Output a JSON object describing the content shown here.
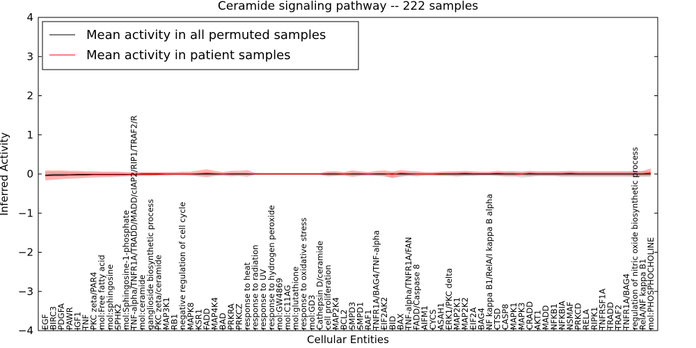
{
  "chart_data": {
    "type": "line",
    "title": "Ceramide signaling pathway -- 222 samples",
    "xlabel": "Cellular Entities",
    "ylabel": "Inferred Activity",
    "ylim": [
      -4,
      4
    ],
    "yticks": [
      -4,
      -3,
      -2,
      -1,
      0,
      1,
      2,
      3,
      4
    ],
    "ytick_labels": [
      "−4",
      "−3",
      "−2",
      "−1",
      "0",
      "1",
      "2",
      "3",
      "4"
    ],
    "legend_position": "top-left",
    "categories": [
      "EGF",
      "BIRC3",
      "PDGFA",
      "PAWR",
      "IGF1",
      "TNF",
      "PKC zeta/PAR4",
      "mol:Free fatty acid",
      "mol:sphingosine",
      "SPHK2",
      "mol:Sphingosine-1-phosphate",
      "TNF-alpha/TNFR1A/TRADD/MADD/cIAP2/RIP1/TRAF2/R",
      "mol:ceramide",
      "ganglioside biosynthetic process",
      "PKC zeta/ceramide",
      "MAP3K1",
      "RB1",
      "negative regulation of cell cycle",
      "MAPK8",
      "KSR1",
      "FADD",
      "MAP4K4",
      "BAD",
      "PRKRA",
      "PRKCZ",
      "response to heat",
      "response to radiation",
      "response to UV",
      "response to hydrogen peroxide",
      "mol:GW4869",
      "mol:C11AG",
      "mol:glutathione",
      "response to oxidative stress",
      "mol:GD3",
      "Cathepsin D/ceramide",
      "cell proliferation",
      "MAP2K4",
      "BCL2",
      "SMPD3",
      "SMPD1",
      "RAF1",
      "TNFR1A/BAG4/TNF-alpha",
      "EIF2AK2",
      "BID",
      "BAX",
      "TNF-alpha/TNFR1A/FAN",
      "FADD/Caspase 8",
      "AIFM1",
      "CYCS",
      "ASAH1",
      "ERK1/PKC delta",
      "MAP2K1",
      "MAP2K2",
      "EIF2A",
      "BAG4",
      "NF kappa B1/RelA/I kappa B alpha",
      "CTSD",
      "CASP8",
      "MAPK1",
      "MAPK3",
      "CRADD",
      "AKT1",
      "MADD",
      "NFKB1",
      "NFKBIA",
      "NSMAF",
      "PRKCD",
      "RELA",
      "RIPK1",
      "TNFRSF1A",
      "TRADD",
      "TRAF2",
      "TNFR1A/BAG4",
      "regulation of nitric oxide biosynthetic process",
      "RelA/NF kappa B1",
      "mol:PHOSPHOCHOLINE"
    ],
    "series": [
      {
        "name": "Mean activity in all permuted samples",
        "color": "#000000",
        "values": [
          -0.03,
          -0.02,
          -0.02,
          -0.02,
          -0.01,
          -0.01,
          -0.01,
          -0.01,
          -0.01,
          -0.01,
          -0.01,
          -0.01,
          0,
          0,
          0,
          0,
          0,
          0,
          0,
          0,
          0,
          0,
          0,
          0,
          0,
          0,
          0,
          0,
          0,
          0,
          0,
          0,
          0,
          0,
          0,
          0,
          0,
          0,
          0,
          0,
          0,
          0,
          0,
          0,
          0,
          0,
          0,
          0,
          0,
          0,
          0,
          0,
          0,
          0,
          0,
          0,
          0,
          0,
          0,
          0,
          0,
          0,
          0,
          0,
          0,
          0,
          0,
          0,
          0,
          0,
          0,
          0,
          0,
          0,
          0,
          0
        ],
        "band_lower": [
          -0.05,
          -0.05,
          -0.05,
          -0.05,
          -0.05,
          -0.04,
          -0.04,
          -0.04,
          -0.04,
          -0.04,
          -0.03,
          -0.03,
          -0.03,
          -0.03,
          -0.03,
          -0.03,
          -0.03,
          -0.03,
          -0.03,
          -0.04,
          -0.05,
          -0.04,
          -0.03,
          -0.03,
          -0.03,
          -0.03,
          -0.03,
          -0.02,
          -0.02,
          -0.02,
          -0.02,
          -0.02,
          -0.02,
          -0.02,
          -0.02,
          -0.04,
          -0.04,
          -0.03,
          -0.05,
          -0.04,
          -0.03,
          -0.03,
          -0.04,
          -0.12,
          -0.07,
          -0.04,
          -0.06,
          -0.03,
          -0.03,
          -0.04,
          -0.04,
          -0.05,
          -0.04,
          -0.04,
          -0.03,
          -0.03,
          -0.03,
          -0.05,
          -0.05,
          -0.1,
          -0.07,
          -0.05,
          -0.05,
          -0.05,
          -0.06,
          -0.06,
          -0.06,
          -0.06,
          -0.06,
          -0.06,
          -0.06,
          -0.06,
          -0.06,
          -0.07,
          -0.07,
          -0.08
        ],
        "band_upper": [
          0.05,
          0.05,
          0.05,
          0.05,
          0.05,
          0.04,
          0.04,
          0.04,
          0.04,
          0.04,
          0.03,
          0.03,
          0.03,
          0.03,
          0.03,
          0.03,
          0.03,
          0.03,
          0.03,
          0.04,
          0.05,
          0.04,
          0.03,
          0.03,
          0.03,
          0.03,
          0.03,
          0.02,
          0.02,
          0.02,
          0.02,
          0.02,
          0.02,
          0.02,
          0.02,
          0.04,
          0.04,
          0.03,
          0.05,
          0.04,
          0.03,
          0.03,
          0.04,
          0.05,
          0.05,
          0.04,
          0.04,
          0.03,
          0.03,
          0.04,
          0.04,
          0.05,
          0.04,
          0.04,
          0.03,
          0.03,
          0.03,
          0.05,
          0.05,
          0.05,
          0.05,
          0.05,
          0.05,
          0.05,
          0.06,
          0.06,
          0.06,
          0.06,
          0.06,
          0.06,
          0.06,
          0.06,
          0.06,
          0.07,
          0.07,
          0.08
        ]
      },
      {
        "name": "Mean activity in patient samples",
        "color": "#ff0000",
        "values": [
          -0.05,
          -0.04,
          -0.04,
          -0.03,
          -0.03,
          -0.03,
          -0.02,
          -0.02,
          -0.02,
          -0.02,
          -0.02,
          -0.01,
          -0.01,
          -0.01,
          -0.01,
          0,
          0,
          0,
          0,
          0.01,
          0.02,
          0.01,
          0,
          0.01,
          0.01,
          0.01,
          0,
          0,
          0,
          0,
          0,
          0,
          0,
          0,
          0,
          0.01,
          0.01,
          0,
          0.01,
          0.01,
          0,
          0.01,
          0.01,
          -0.01,
          0.02,
          0.01,
          0,
          0,
          0,
          0.01,
          0.01,
          0.01,
          0.02,
          0.01,
          0.01,
          0.01,
          0.02,
          0.01,
          0.01,
          0,
          0.02,
          0.01,
          0.01,
          0.01,
          0.01,
          0.02,
          0.01,
          0.01,
          0.01,
          0.01,
          0.01,
          0.01,
          0.01,
          0.01,
          0.01,
          0.03
        ],
        "band_lower": [
          -0.16,
          -0.15,
          -0.13,
          -0.12,
          -0.11,
          -0.1,
          -0.09,
          -0.08,
          -0.08,
          -0.07,
          -0.06,
          -0.06,
          -0.05,
          -0.05,
          -0.04,
          -0.04,
          -0.03,
          -0.03,
          -0.04,
          -0.06,
          -0.08,
          -0.05,
          -0.04,
          -0.06,
          -0.05,
          -0.07,
          -0.02,
          -0.02,
          -0.02,
          -0.02,
          -0.02,
          -0.02,
          -0.02,
          -0.02,
          -0.02,
          -0.06,
          -0.05,
          -0.04,
          -0.07,
          -0.05,
          -0.04,
          -0.05,
          -0.06,
          -0.09,
          -0.06,
          -0.05,
          -0.05,
          -0.04,
          -0.04,
          -0.05,
          -0.05,
          -0.06,
          -0.05,
          -0.05,
          -0.04,
          -0.04,
          -0.05,
          -0.06,
          -0.06,
          -0.04,
          -0.06,
          -0.05,
          -0.05,
          -0.05,
          -0.06,
          -0.06,
          -0.06,
          -0.06,
          -0.06,
          -0.06,
          -0.06,
          -0.06,
          -0.06,
          -0.06,
          -0.06,
          -0.05
        ],
        "band_upper": [
          0.09,
          0.09,
          0.09,
          0.08,
          0.08,
          0.07,
          0.07,
          0.06,
          0.06,
          0.06,
          0.05,
          0.05,
          0.05,
          0.05,
          0.05,
          0.05,
          0.05,
          0.06,
          0.06,
          0.09,
          0.12,
          0.08,
          0.05,
          0.08,
          0.08,
          0.1,
          0.03,
          0.03,
          0.03,
          0.03,
          0.03,
          0.03,
          0.03,
          0.03,
          0.03,
          0.07,
          0.07,
          0.05,
          0.09,
          0.07,
          0.05,
          0.08,
          0.09,
          0.06,
          0.1,
          0.08,
          0.07,
          0.05,
          0.05,
          0.06,
          0.07,
          0.07,
          0.08,
          0.07,
          0.06,
          0.06,
          0.08,
          0.07,
          0.07,
          0.06,
          0.08,
          0.07,
          0.07,
          0.07,
          0.07,
          0.08,
          0.07,
          0.07,
          0.07,
          0.07,
          0.07,
          0.07,
          0.07,
          0.07,
          0.08,
          0.14
        ]
      }
    ]
  }
}
